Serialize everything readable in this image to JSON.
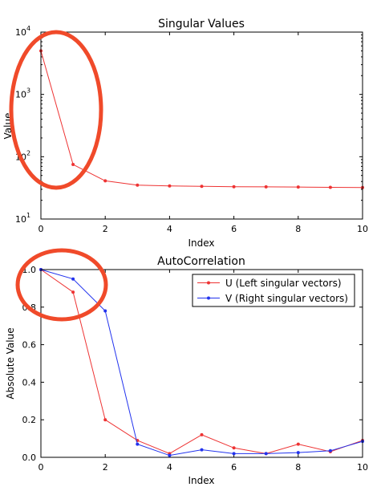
{
  "chart_data": [
    {
      "type": "line",
      "title": "Singular Values",
      "xlabel": "Index",
      "ylabel": "Value",
      "xlim": [
        0,
        10
      ],
      "ylim": [
        10,
        10000
      ],
      "yscale": "log",
      "x_ticks": [
        "0",
        "2",
        "4",
        "6",
        "8",
        "10"
      ],
      "y_ticks": [
        {
          "base": "10",
          "exp": "1"
        },
        {
          "base": "10",
          "exp": "2"
        },
        {
          "base": "10",
          "exp": "3"
        },
        {
          "base": "10",
          "exp": "4"
        }
      ],
      "series": [
        {
          "color": "#ee3333",
          "x": [
            0,
            1,
            2,
            3,
            4,
            5,
            6,
            7,
            8,
            9,
            10
          ],
          "values": [
            5000,
            75,
            41,
            35,
            34,
            33.5,
            33,
            32.8,
            32.6,
            32.3,
            32.0
          ]
        }
      ],
      "annotation": {
        "shape": "ellipse",
        "color": "#f04a2a"
      }
    },
    {
      "type": "line",
      "title": "AutoCorrelation",
      "xlabel": "Index",
      "ylabel": "Absolute Value",
      "xlim": [
        0,
        10
      ],
      "ylim": [
        0.0,
        1.0
      ],
      "x_ticks": [
        "0",
        "2",
        "4",
        "6",
        "8",
        "10"
      ],
      "y_ticks": [
        "0.0",
        "0.2",
        "0.4",
        "0.6",
        "0.8",
        "1.0"
      ],
      "legend_position": "top-right",
      "series": [
        {
          "name": "U (Left singular vectors)",
          "color": "#ee3333",
          "x": [
            0,
            1,
            2,
            3,
            4,
            5,
            6,
            7,
            8,
            9,
            10
          ],
          "values": [
            1.0,
            0.88,
            0.2,
            0.09,
            0.02,
            0.12,
            0.05,
            0.02,
            0.07,
            0.03,
            0.09
          ]
        },
        {
          "name": "V (Right singular vectors)",
          "color": "#2233ee",
          "x": [
            0,
            1,
            2,
            3,
            4,
            5,
            6,
            7,
            8,
            9,
            10
          ],
          "values": [
            1.0,
            0.95,
            0.78,
            0.07,
            0.01,
            0.04,
            0.02,
            0.02,
            0.025,
            0.035,
            0.085
          ]
        }
      ],
      "annotation": {
        "shape": "ellipse",
        "color": "#f04a2a"
      }
    }
  ]
}
